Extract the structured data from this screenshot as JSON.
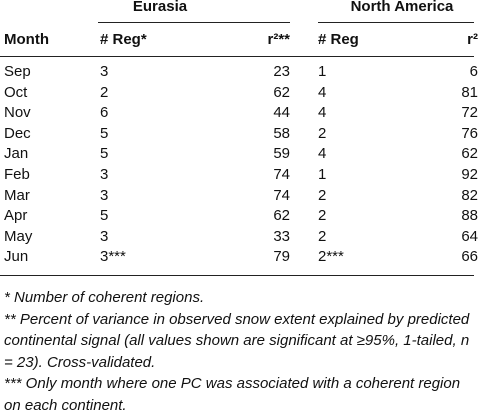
{
  "table": {
    "groups": [
      "Eurasia",
      "North America"
    ],
    "columns": [
      "Month",
      "# Reg*",
      "r²**",
      "# Reg",
      "r²"
    ],
    "rows": [
      [
        "Sep",
        "3",
        "23",
        "1",
        "6"
      ],
      [
        "Oct",
        "2",
        "62",
        "4",
        "81"
      ],
      [
        "Nov",
        "6",
        "44",
        "4",
        "72"
      ],
      [
        "Dec",
        "5",
        "58",
        "2",
        "76"
      ],
      [
        "Jan",
        "5",
        "59",
        "4",
        "62"
      ],
      [
        "Feb",
        "3",
        "74",
        "1",
        "92"
      ],
      [
        "Mar",
        "3",
        "74",
        "2",
        "82"
      ],
      [
        "Apr",
        "5",
        "62",
        "2",
        "88"
      ],
      [
        "May",
        "3",
        "33",
        "2",
        "64"
      ],
      [
        "Jun",
        "3***",
        "79",
        "2***",
        "66"
      ]
    ]
  },
  "footnotes": [
    "* Number of coherent regions.",
    "** Percent of variance in observed snow extent explained by predicted continental signal (all values shown are significant at ≥95%, 1-tailed, n = 23). Cross-validated.",
    "*** Only month where one PC was associated with a coherent region on each continent."
  ]
}
